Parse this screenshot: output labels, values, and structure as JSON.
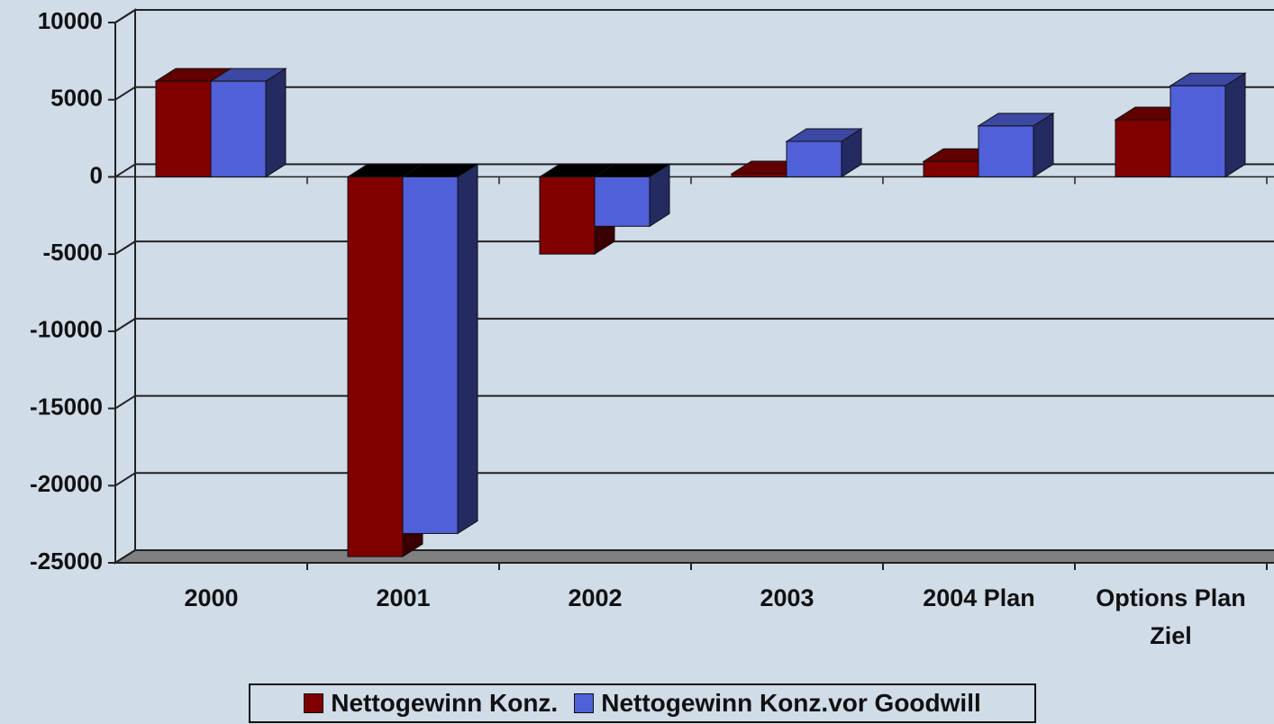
{
  "chart_data": {
    "type": "bar3d",
    "categories": [
      "2000",
      "2001",
      "2002",
      "2003",
      "2004 Plan",
      "Options Plan Ziel"
    ],
    "series": [
      {
        "name": "Nettogewinn Konz.",
        "color": "#800000",
        "values": [
          6200,
          -24600,
          -5000,
          200,
          1000,
          3700
        ]
      },
      {
        "name": "Nettogewinn Konz.vor Goodwill",
        "color": "#5060d8",
        "values": [
          6200,
          -23100,
          -3200,
          2300,
          3300,
          5900
        ]
      }
    ],
    "ylim": [
      -25000,
      10000
    ],
    "yticks": [
      -25000,
      -20000,
      -15000,
      -10000,
      -5000,
      0,
      5000,
      10000
    ],
    "grid": true
  }
}
